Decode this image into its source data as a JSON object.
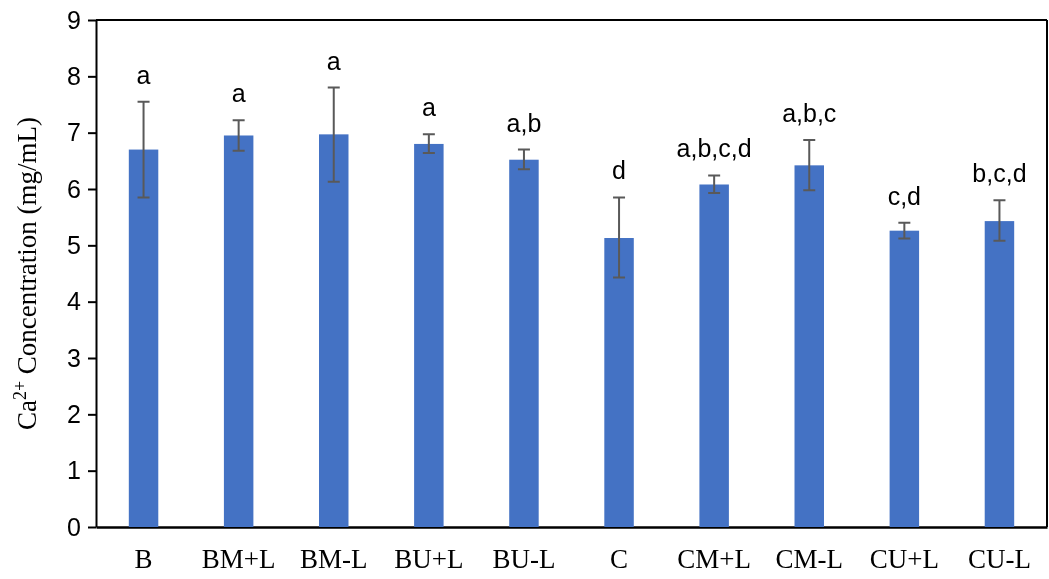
{
  "chart_data": {
    "type": "bar",
    "ylabel": "Ca$^{2+}$ Concentration (mg/mL)",
    "categories": [
      "B",
      "BM+L",
      "BM-L",
      "BU+L",
      "BU-L",
      "C",
      "CM+L",
      "CM-L",
      "CU+L",
      "CU-L"
    ],
    "values": [
      6.7,
      6.95,
      6.97,
      6.8,
      6.52,
      5.13,
      6.08,
      6.42,
      5.26,
      5.43
    ],
    "errors": [
      [
        5.85,
        7.55
      ],
      [
        6.68,
        7.22
      ],
      [
        6.13,
        7.8
      ],
      [
        6.64,
        6.97
      ],
      [
        6.35,
        6.7
      ],
      [
        4.43,
        5.85
      ],
      [
        5.93,
        6.24
      ],
      [
        5.98,
        6.87
      ],
      [
        5.12,
        5.4
      ],
      [
        5.08,
        5.8
      ]
    ],
    "color": "#4472c4",
    "ylim": [
      0,
      9
    ],
    "yticks": [
      0,
      1,
      2,
      3,
      4,
      5,
      6,
      7,
      8,
      9
    ],
    "grid": false,
    "annotations": [
      {
        "text": "a",
        "x": "B",
        "y": 7.55
      },
      {
        "text": "a",
        "x": "BM+L",
        "y": 7.22
      },
      {
        "text": "a",
        "x": "BM-L",
        "y": 7.8
      },
      {
        "text": "a",
        "x": "BU+L",
        "y": 6.97
      },
      {
        "text": "a,b",
        "x": "BU-L",
        "y": 6.7
      },
      {
        "text": "d",
        "x": "C",
        "y": 5.85
      },
      {
        "text": "a,b,c,d",
        "x": "CM+L",
        "y": 6.24
      },
      {
        "text": "a,b,c",
        "x": "CM-L",
        "y": 6.87
      },
      {
        "text": "c,d",
        "x": "CU+L",
        "y": 5.4
      },
      {
        "text": "b,c,d",
        "x": "CU-L",
        "y": 5.8
      }
    ]
  }
}
